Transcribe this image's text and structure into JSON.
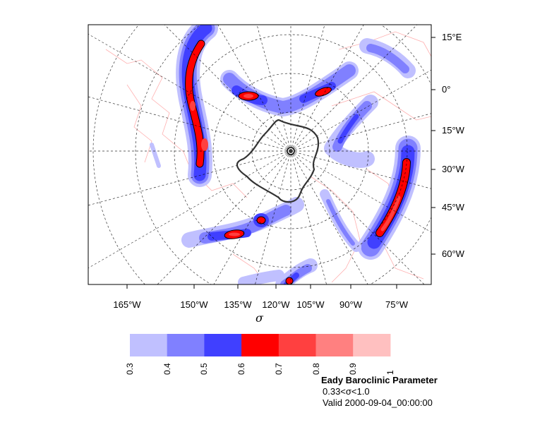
{
  "map": {
    "projection_note": "polar stereographic",
    "right_labels": [
      "15°E",
      "0°",
      "15°W",
      "30°W",
      "45°W",
      "60°W"
    ],
    "bottom_labels": [
      "165°W",
      "150°W",
      "135°W",
      "120°W",
      "105°W",
      "90°W",
      "75°W"
    ],
    "x_axis_label": "σ"
  },
  "colorbar": {
    "levels": [
      "0.3",
      "0.4",
      "0.5",
      "0.6",
      "0.7",
      "0.8",
      "0.9",
      "1"
    ],
    "colors": [
      "#c0c0ff",
      "#8080ff",
      "#4040ff",
      "#ff0000",
      "#ff4040",
      "#ff8080",
      "#ffc0c0"
    ]
  },
  "caption": {
    "title": "Eady Baroclinic Parameter",
    "layer": "0.33<σ<1.0",
    "valid": "Valid 2000-09-04_00:00:00"
  },
  "colors": {
    "coast": "#ffb0b0",
    "arctic_coast": "#222222",
    "grid": "#000000"
  }
}
